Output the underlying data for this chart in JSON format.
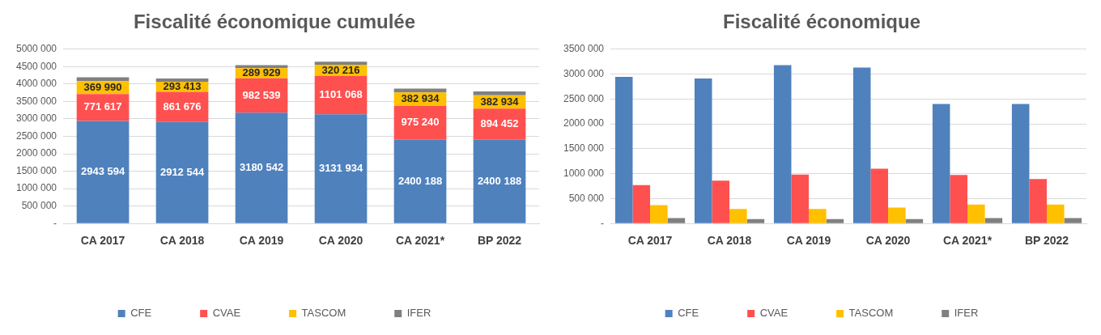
{
  "chart_data": [
    {
      "type": "bar",
      "title": "Fiscalité économique cumulée",
      "stacked": true,
      "legend": "bottom",
      "grid": "y",
      "categories": [
        "CA 2017",
        "CA 2018",
        "CA 2019",
        "CA 2020",
        "CA 2021*",
        "BP 2022"
      ],
      "ylim": [
        0,
        5000000
      ],
      "yticks": [
        {
          "value": 0,
          "label": "-"
        },
        {
          "value": 500000,
          "label": "500 000"
        },
        {
          "value": 1000000,
          "label": "1000 000"
        },
        {
          "value": 1500000,
          "label": "1500 000"
        },
        {
          "value": 2000000,
          "label": "2000 000"
        },
        {
          "value": 2500000,
          "label": "2500 000"
        },
        {
          "value": 3000000,
          "label": "3000 000"
        },
        {
          "value": 3500000,
          "label": "3500 000"
        },
        {
          "value": 4000000,
          "label": "4000 000"
        },
        {
          "value": 4500000,
          "label": "4500 000"
        },
        {
          "value": 5000000,
          "label": "5000 000"
        }
      ],
      "series": [
        {
          "name": "CFE",
          "color": "#4f81bd",
          "values": [
            2943594,
            2912544,
            3180542,
            3131934,
            2400188,
            2400188
          ],
          "value_labels": [
            "2943 594",
            "2912 544",
            "3180 542",
            "3131 934",
            "2400 188",
            "2400 188"
          ]
        },
        {
          "name": "CVAE",
          "color": "#ff5050",
          "values": [
            771617,
            861676,
            982539,
            1101068,
            975240,
            894452
          ],
          "value_labels": [
            "771 617",
            "861 676",
            "982 539",
            "1101 068",
            "975 240",
            "894 452"
          ]
        },
        {
          "name": "TASCOM",
          "color": "#ffc000",
          "values": [
            369990,
            293413,
            289929,
            320216,
            382934,
            382934
          ],
          "value_labels": [
            "369 990",
            "293 413",
            "289 929",
            "320 216",
            "382 934",
            "382 934"
          ]
        },
        {
          "name": "IFER",
          "color": "#808080",
          "values": [
            110000,
            90000,
            90000,
            90000,
            110000,
            110000
          ]
        }
      ]
    },
    {
      "type": "bar",
      "title": "Fiscalité économique",
      "legend": "bottom",
      "grid": "y",
      "categories": [
        "CA 2017",
        "CA 2018",
        "CA 2019",
        "CA 2020",
        "CA 2021*",
        "BP 2022"
      ],
      "ylim": [
        0,
        3500000
      ],
      "yticks": [
        {
          "value": 0,
          "label": "-"
        },
        {
          "value": 500000,
          "label": "500 000"
        },
        {
          "value": 1000000,
          "label": "1000 000"
        },
        {
          "value": 1500000,
          "label": "1500 000"
        },
        {
          "value": 2000000,
          "label": "2000 000"
        },
        {
          "value": 2500000,
          "label": "2500 000"
        },
        {
          "value": 3000000,
          "label": "3000 000"
        },
        {
          "value": 3500000,
          "label": "3500 000"
        }
      ],
      "series": [
        {
          "name": "CFE",
          "color": "#4f81bd",
          "values": [
            2943594,
            2912544,
            3180542,
            3131934,
            2400188,
            2400188
          ]
        },
        {
          "name": "CVAE",
          "color": "#ff5050",
          "values": [
            771617,
            861676,
            982539,
            1101068,
            975240,
            894452
          ]
        },
        {
          "name": "TASCOM",
          "color": "#ffc000",
          "values": [
            369990,
            293413,
            289929,
            320216,
            382934,
            382934
          ]
        },
        {
          "name": "IFER",
          "color": "#808080",
          "values": [
            110000,
            90000,
            90000,
            90000,
            110000,
            110000
          ]
        }
      ]
    }
  ]
}
